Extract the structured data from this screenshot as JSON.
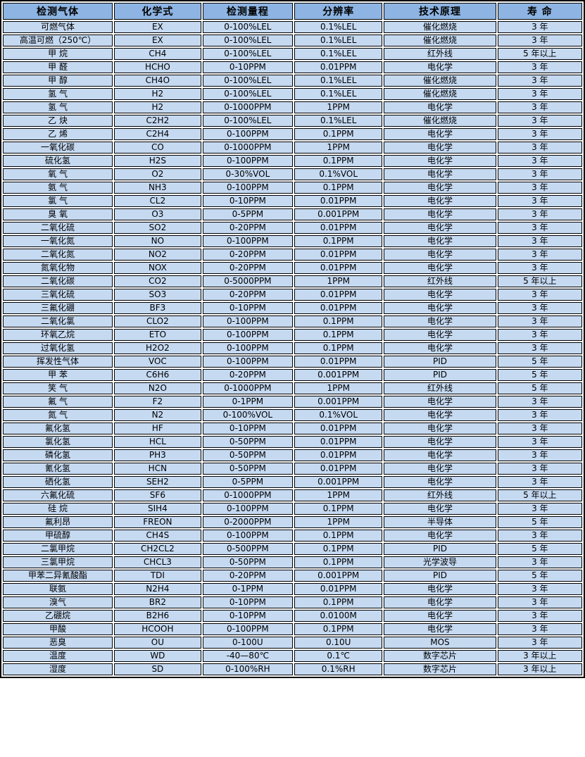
{
  "colors": {
    "header_bg": "#8db4e2",
    "row_bg": "#c5d9f1",
    "border": "#000000",
    "gap": "#ffffff",
    "text": "#000000"
  },
  "table": {
    "columns": [
      "检测气体",
      "化学式",
      "检测量程",
      "分辨率",
      "技术原理",
      "寿 命"
    ],
    "rows": [
      [
        "可燃气体",
        "EX",
        "0-100%LEL",
        "0.1%LEL",
        "催化燃烧",
        "3 年"
      ],
      [
        "高温可燃（250℃）",
        "EX",
        "0-100%LEL",
        "0.1%LEL",
        "催化燃烧",
        "3 年"
      ],
      [
        "甲 烷",
        "CH4",
        "0-100%LEL",
        "0.1%LEL",
        "红外线",
        "5 年以上"
      ],
      [
        "甲 醛",
        "HCHO",
        "0-10PPM",
        "0.01PPM",
        "电化学",
        "3 年"
      ],
      [
        "甲 醇",
        "CH4O",
        "0-100%LEL",
        "0.1%LEL",
        "催化燃烧",
        "3 年"
      ],
      [
        "氢 气",
        "H2",
        "0-100%LEL",
        "0.1%LEL",
        "催化燃烧",
        "3 年"
      ],
      [
        "氢 气",
        "H2",
        "0-1000PPM",
        "1PPM",
        "电化学",
        "3 年"
      ],
      [
        "乙 炔",
        "C2H2",
        "0-100%LEL",
        "0.1%LEL",
        "催化燃烧",
        "3 年"
      ],
      [
        "乙 烯",
        "C2H4",
        "0-100PPM",
        "0.1PPM",
        "电化学",
        "3 年"
      ],
      [
        "一氧化碳",
        "CO",
        "0-1000PPM",
        "1PPM",
        "电化学",
        "3 年"
      ],
      [
        "硫化氢",
        "H2S",
        "0-100PPM",
        "0.1PPM",
        "电化学",
        "3 年"
      ],
      [
        "氧 气",
        "O2",
        "0-30%VOL",
        "0.1%VOL",
        "电化学",
        "3 年"
      ],
      [
        "氨 气",
        "NH3",
        "0-100PPM",
        "0.1PPM",
        "电化学",
        "3 年"
      ],
      [
        "氯 气",
        "CL2",
        "0-10PPM",
        "0.01PPM",
        "电化学",
        "3 年"
      ],
      [
        "臭 氧",
        "O3",
        "0-5PPM",
        "0.001PPM",
        "电化学",
        "3 年"
      ],
      [
        "二氧化硫",
        "SO2",
        "0-20PPM",
        "0.01PPM",
        "电化学",
        "3 年"
      ],
      [
        "一氧化氮",
        "NO",
        "0-100PPM",
        "0.1PPM",
        "电化学",
        "3 年"
      ],
      [
        "二氧化氮",
        "NO2",
        "0-20PPM",
        "0.01PPM",
        "电化学",
        "3 年"
      ],
      [
        "氮氧化物",
        "NOX",
        "0-20PPM",
        "0.01PPM",
        "电化学",
        "3 年"
      ],
      [
        "二氧化碳",
        "CO2",
        "0-5000PPM",
        "1PPM",
        "红外线",
        "5 年以上"
      ],
      [
        "三氧化硫",
        "SO3",
        "0-20PPM",
        "0.01PPM",
        "电化学",
        "3 年"
      ],
      [
        "三氟化硼",
        "BF3",
        "0-10PPM",
        "0.01PPM",
        "电化学",
        "3 年"
      ],
      [
        "二氧化氯",
        "CLO2",
        "0-100PPM",
        "0.1PPM",
        "电化学",
        "3 年"
      ],
      [
        "环氧乙烷",
        "ETO",
        "0-100PPM",
        "0.1PPM",
        "电化学",
        "3 年"
      ],
      [
        "过氧化氢",
        "H2O2",
        "0-100PPM",
        "0.1PPM",
        "电化学",
        "3 年"
      ],
      [
        "挥发性气体",
        "VOC",
        "0-100PPM",
        "0.01PPM",
        "PID",
        "5 年"
      ],
      [
        "甲 苯",
        "C6H6",
        "0-20PPM",
        "0.001PPM",
        "PID",
        "5 年"
      ],
      [
        "笑 气",
        "N2O",
        "0-1000PPM",
        "1PPM",
        "红外线",
        "5 年"
      ],
      [
        "氟 气",
        "F2",
        "0-1PPM",
        "0.001PPM",
        "电化学",
        "3 年"
      ],
      [
        "氮 气",
        "N2",
        "0-100%VOL",
        "0.1%VOL",
        "电化学",
        "3 年"
      ],
      [
        "氟化氢",
        "HF",
        "0-10PPM",
        "0.01PPM",
        "电化学",
        "3 年"
      ],
      [
        "氯化氢",
        "HCL",
        "0-50PPM",
        "0.01PPM",
        "电化学",
        "3 年"
      ],
      [
        "磷化氢",
        "PH3",
        "0-50PPM",
        "0.01PPM",
        "电化学",
        "3 年"
      ],
      [
        "氰化氢",
        "HCN",
        "0-50PPM",
        "0.01PPM",
        "电化学",
        "3 年"
      ],
      [
        "硒化氢",
        "SEH2",
        "0-5PPM",
        "0.001PPM",
        "电化学",
        "3 年"
      ],
      [
        "六氟化硫",
        "SF6",
        "0-1000PPM",
        "1PPM",
        "红外线",
        "5 年以上"
      ],
      [
        "硅 烷",
        "SIH4",
        "0-100PPM",
        "0.1PPM",
        "电化学",
        "3 年"
      ],
      [
        "氟利昂",
        "FREON",
        "0-2000PPM",
        "1PPM",
        "半导体",
        "5 年"
      ],
      [
        "甲硫醇",
        "CH4S",
        "0-100PPM",
        "0.1PPM",
        "电化学",
        "3 年"
      ],
      [
        "二氯甲烷",
        "CH2CL2",
        "0-500PPM",
        "0.1PPM",
        "PID",
        "5 年"
      ],
      [
        "三氯甲烷",
        "CHCL3",
        "0-50PPM",
        "0.1PPM",
        "光学波导",
        "3 年"
      ],
      [
        "甲苯二异氰酸酯",
        "TDI",
        "0-20PPM",
        "0.001PPM",
        "PID",
        "5 年"
      ],
      [
        "联氨",
        "N2H4",
        "0-1PPM",
        "0.01PPM",
        "电化学",
        "3 年"
      ],
      [
        "溴气",
        "BR2",
        "0-10PPM",
        "0.1PPM",
        "电化学",
        "3 年"
      ],
      [
        "乙硼烷",
        "B2H6",
        "0-10PPM",
        "0.0100M",
        "电化学",
        "3 年"
      ],
      [
        "甲酸",
        "HCOOH",
        "0-100PPM",
        "0.1PPM",
        "电化学",
        "3 年"
      ],
      [
        "恶臭",
        "OU",
        "0-100U",
        "0.10U",
        "MOS",
        "3 年"
      ],
      [
        "温度",
        "WD",
        "-40—80℃",
        "0.1℃",
        "数字芯片",
        "3 年以上"
      ],
      [
        "湿度",
        "SD",
        "0-100%RH",
        "0.1%RH",
        "数字芯片",
        "3 年以上"
      ]
    ]
  }
}
